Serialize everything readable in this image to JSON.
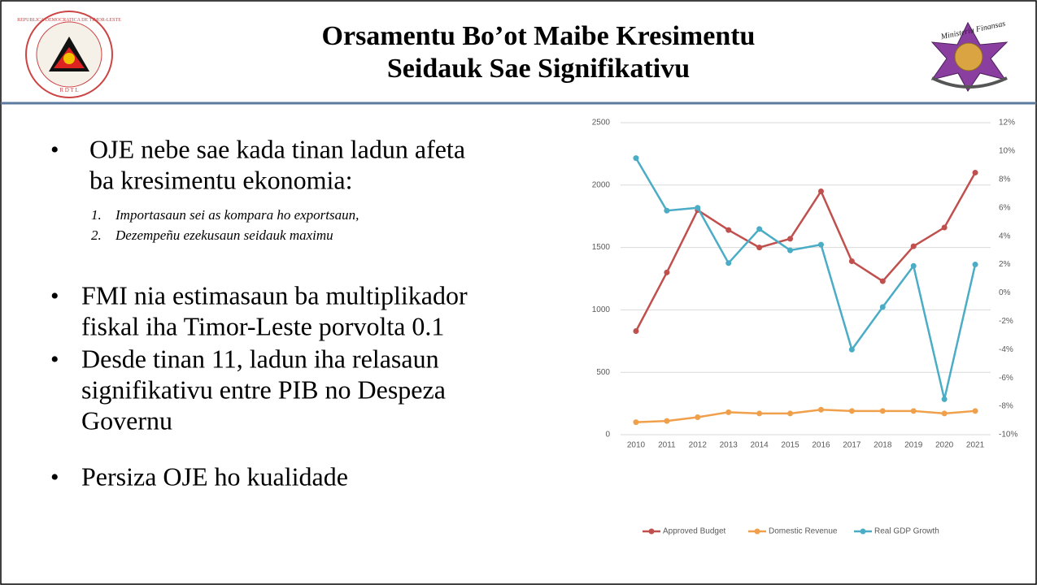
{
  "header": {
    "title_lines": [
      "Orsamentu Bo’ot Maibe Kresimentu",
      "Seidauk Sae Signifikativu"
    ],
    "left_logo_texts": [
      "REPUBLICA DEMOCRATICA DE TIMOR-LESTE",
      "R D T L"
    ],
    "right_logo_texts": [
      "Ministeriu Finansas"
    ]
  },
  "bullets": [
    {
      "lines": [
        "OJE nebe sae kada tinan ladun afeta",
        "ba kresimentu ekonomia:"
      ],
      "items": [
        "Importasaun sei as kompara ho exportsaun,",
        "Dezempeñu ezekusaun seidauk maximu"
      ],
      "item_numbers": [
        "1.",
        "2."
      ]
    },
    {
      "lines": [
        "FMI nia estimasaun ba multiplikador",
        "fiskal iha Timor-Leste porvolta 0.1"
      ]
    },
    {
      "lines": [
        "Desde tinan 11, ladun iha relasaun",
        "signifikativu entre PIB no Despeza",
        "Governu"
      ]
    },
    {
      "lines": [
        "Persiza OJE ho kualidade"
      ]
    }
  ],
  "chart_data": {
    "type": "line",
    "categories": [
      "2010",
      "2011",
      "2012",
      "2013",
      "2014",
      "2015",
      "2016",
      "2017",
      "2018",
      "2019",
      "2020",
      "2021"
    ],
    "series": [
      {
        "name": "Approved Budget",
        "color": "#c0504d",
        "values": [
          830,
          1300,
          1800,
          1640,
          1500,
          1570,
          1950,
          1390,
          1230,
          1510,
          1660,
          2100
        ]
      },
      {
        "name": "Domestic Revenue",
        "color": "#f0a04b",
        "values": [
          100,
          110,
          140,
          180,
          170,
          170,
          200,
          190,
          190,
          190,
          170,
          190
        ]
      },
      {
        "name": "Real GDP Growth",
        "color": "#4bacc6",
        "axis": "y2",
        "values": [
          9.5,
          5.8,
          6.0,
          2.1,
          4.5,
          3.0,
          3.4,
          -4.0,
          -1.0,
          1.9,
          -7.5,
          2.0
        ]
      }
    ],
    "ylim": [
      0,
      2500
    ],
    "yticks": [
      0,
      500,
      1000,
      1500,
      2000,
      2500
    ],
    "y2lim": [
      -10,
      12
    ],
    "y2ticks": [
      {
        "value": -10,
        "label": "-10%"
      },
      {
        "value": -8,
        "label": "-8%"
      },
      {
        "value": -6,
        "label": "-6%"
      },
      {
        "value": -4,
        "label": "-4%"
      },
      {
        "value": -2,
        "label": "-2%"
      },
      {
        "value": 0,
        "label": "0%"
      },
      {
        "value": 2,
        "label": "2%"
      },
      {
        "value": 4,
        "label": "4%"
      },
      {
        "value": 6,
        "label": "6%"
      },
      {
        "value": 8,
        "label": "8%"
      },
      {
        "value": 10,
        "label": "10%"
      },
      {
        "value": 12,
        "label": "12%"
      }
    ],
    "grid": true,
    "legend": "bottom"
  }
}
